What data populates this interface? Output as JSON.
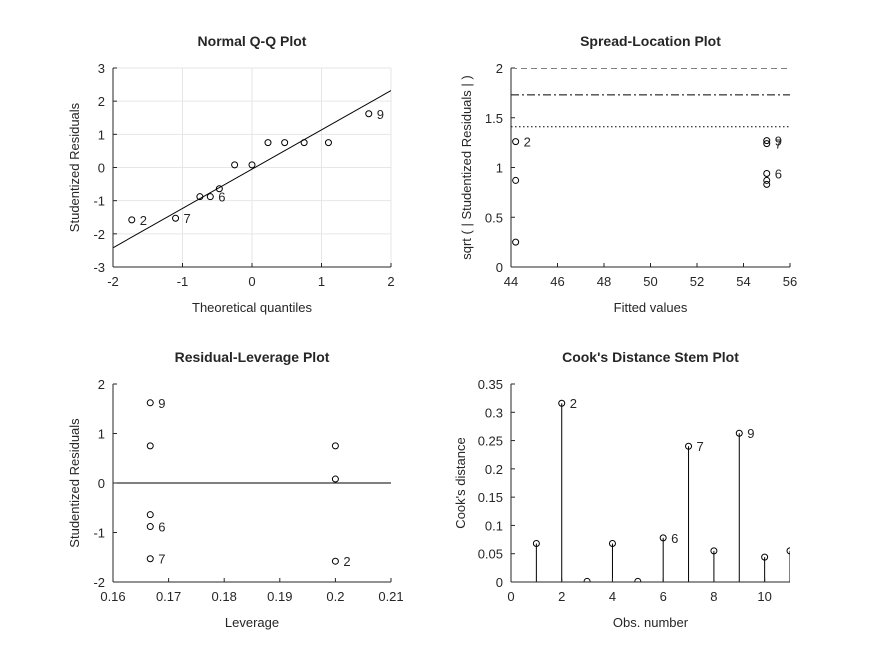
{
  "chart_data": [
    {
      "type": "scatter",
      "title": "Normal Q-Q Plot",
      "xlabel": "Theoretical quantiles",
      "ylabel": "Studentized Residuals",
      "xlim": [
        -2,
        2
      ],
      "ylim": [
        -3,
        3
      ],
      "xticks": [
        "-2",
        "-1",
        "0",
        "1",
        "2"
      ],
      "yticks": [
        "-3",
        "-2",
        "-1",
        "0",
        "1",
        "2",
        "3"
      ],
      "grid": true,
      "points": [
        {
          "x": -1.73,
          "y": -1.58,
          "label": "2"
        },
        {
          "x": -1.1,
          "y": -1.53,
          "label": "7"
        },
        {
          "x": -0.75,
          "y": -0.88
        },
        {
          "x": -0.6,
          "y": -0.88,
          "label": "6"
        },
        {
          "x": -0.47,
          "y": -0.64
        },
        {
          "x": -0.25,
          "y": 0.08
        },
        {
          "x": 0.0,
          "y": 0.08
        },
        {
          "x": 0.23,
          "y": 0.75
        },
        {
          "x": 0.47,
          "y": 0.75
        },
        {
          "x": 0.75,
          "y": 0.75
        },
        {
          "x": 1.1,
          "y": 0.75
        },
        {
          "x": 1.68,
          "y": 1.62,
          "label": "9"
        }
      ],
      "reference_line": {
        "x": [
          -2,
          2
        ],
        "y": [
          -2.42,
          2.32
        ]
      }
    },
    {
      "type": "scatter",
      "title": "Spread-Location Plot",
      "xlabel": "Fitted values",
      "ylabel": "sqrt ( | Studentized Residuals | )",
      "xlim": [
        44,
        56
      ],
      "ylim": [
        0,
        2
      ],
      "xticks": [
        "44",
        "46",
        "48",
        "50",
        "52",
        "54",
        "56"
      ],
      "yticks": [
        "0",
        "0.5",
        "1",
        "1.5",
        "2"
      ],
      "grid": false,
      "points": [
        {
          "x": 44.2,
          "y": 1.26,
          "label": "2"
        },
        {
          "x": 44.2,
          "y": 0.87
        },
        {
          "x": 44.2,
          "y": 0.25
        },
        {
          "x": 55.0,
          "y": 1.27,
          "label": "9"
        },
        {
          "x": 55.0,
          "y": 1.24,
          "label": "7"
        },
        {
          "x": 55.0,
          "y": 0.94,
          "label": "6"
        },
        {
          "x": 55.0,
          "y": 0.87
        },
        {
          "x": 55.0,
          "y": 0.83
        }
      ],
      "reference_lines": [
        {
          "y": 2.0,
          "style": "dashed"
        },
        {
          "y": 1.73,
          "style": "dashdot"
        },
        {
          "y": 1.41,
          "style": "dotted"
        }
      ]
    },
    {
      "type": "scatter",
      "title": "Residual-Leverage Plot",
      "xlabel": "Leverage",
      "ylabel": "Studentized Residuals",
      "xlim": [
        0.16,
        0.21
      ],
      "ylim": [
        -2,
        2
      ],
      "xticks": [
        "0.16",
        "0.17",
        "0.18",
        "0.19",
        "0.2",
        "0.21"
      ],
      "yticks": [
        "-2",
        "-1",
        "0",
        "1",
        "2"
      ],
      "grid": false,
      "points": [
        {
          "x": 0.1667,
          "y": 1.62,
          "label": "9"
        },
        {
          "x": 0.1667,
          "y": 0.75
        },
        {
          "x": 0.1667,
          "y": -0.64
        },
        {
          "x": 0.1667,
          "y": -0.88,
          "label": "6"
        },
        {
          "x": 0.1667,
          "y": -1.53,
          "label": "7"
        },
        {
          "x": 0.2,
          "y": 0.75
        },
        {
          "x": 0.2,
          "y": 0.08
        },
        {
          "x": 0.2,
          "y": -1.58,
          "label": "2"
        }
      ],
      "reference_lines": [
        {
          "y": 0,
          "style": "solid"
        }
      ]
    },
    {
      "type": "stem",
      "title": "Cook's Distance Stem Plot",
      "xlabel": "Obs. number",
      "ylabel": "Cook's distance",
      "xlim": [
        0,
        11
      ],
      "ylim": [
        0,
        0.35
      ],
      "xticks": [
        "0",
        "2",
        "4",
        "6",
        "8",
        "10"
      ],
      "yticks": [
        "0",
        "0.05",
        "0.1",
        "0.15",
        "0.2",
        "0.25",
        "0.3",
        "0.35"
      ],
      "grid": false,
      "x": [
        1,
        2,
        3,
        4,
        5,
        6,
        7,
        8,
        9,
        10,
        11
      ],
      "values": [
        0.068,
        0.316,
        0.001,
        0.068,
        0.001,
        0.078,
        0.24,
        0.055,
        0.263,
        0.044,
        0.055
      ],
      "point_labels": {
        "2": "2",
        "6": "6",
        "7": "7",
        "9": "9"
      }
    }
  ]
}
